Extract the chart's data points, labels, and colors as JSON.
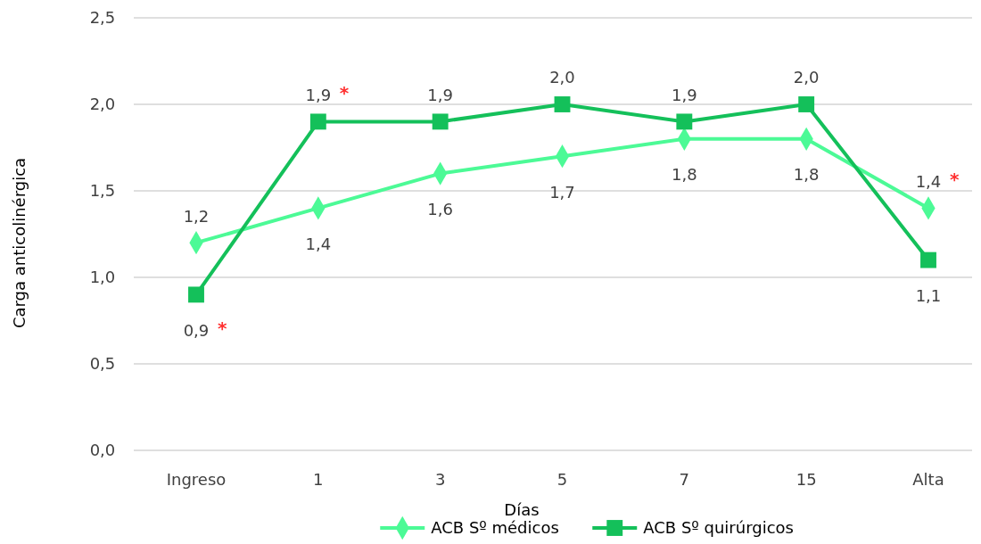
{
  "chart_data": {
    "type": "line",
    "xlabel": "Días",
    "ylabel": "Carga anticolinérgica",
    "categories": [
      "Ingreso",
      "1",
      "3",
      "5",
      "7",
      "15",
      "Alta"
    ],
    "ylim": [
      0,
      2.5
    ],
    "yticks": [
      {
        "value": 0,
        "label": "0,0"
      },
      {
        "value": 0.5,
        "label": "0,5"
      },
      {
        "value": 1,
        "label": "1,0"
      },
      {
        "value": 1.5,
        "label": "1,5"
      },
      {
        "value": 2,
        "label": "2,0"
      },
      {
        "value": 2.5,
        "label": "2,5"
      }
    ],
    "grid": "y",
    "legend": "bottom",
    "series": [
      {
        "name": "ACB  Sº  médicos",
        "color": "#4cfa96",
        "marker": "diamond",
        "values": [
          1.2,
          1.4,
          1.6,
          1.7,
          1.8,
          1.8,
          1.4
        ],
        "value_labels": [
          "1,2",
          "1,4",
          "1,6",
          "1,7",
          "1,8",
          "1,8",
          "1,4"
        ]
      },
      {
        "name": "ACB  Sº quirúrgicos",
        "color": "#14c05a",
        "marker": "square",
        "values": [
          0.9,
          1.9,
          1.9,
          2.0,
          1.9,
          2.0,
          1.1
        ],
        "value_labels": [
          "0,9",
          "1,9",
          "1,9",
          "2,0",
          "1,9",
          "2,0",
          "1,1"
        ]
      }
    ],
    "annotations": [
      {
        "text": "*",
        "x": "Ingreso",
        "y": 0.9
      },
      {
        "text": "*",
        "x": "1",
        "y": 1.9
      },
      {
        "text": "*",
        "x": "Alta",
        "y": 1.4
      }
    ]
  }
}
